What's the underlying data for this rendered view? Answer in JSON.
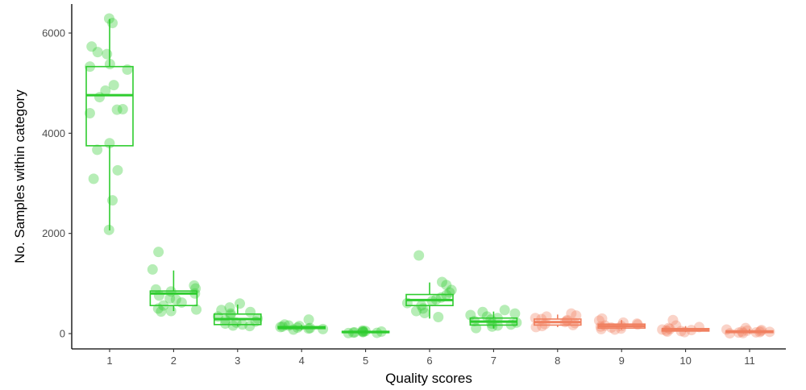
{
  "chart_data": {
    "type": "boxplot",
    "xlabel": "Quality scores",
    "ylabel": "No. Samples within category",
    "ylim": [
      -300,
      6600
    ],
    "y_ticks": [
      0,
      2000,
      4000,
      6000
    ],
    "categories": [
      "1",
      "2",
      "3",
      "4",
      "5",
      "6",
      "7",
      "8",
      "9",
      "10",
      "11"
    ],
    "grid": false,
    "colors": {
      "green": "#2ecc2e",
      "salmon": "#f08060",
      "axis": "#000000"
    },
    "boxes": [
      {
        "category": "1",
        "color": "green",
        "whisker_low": 2060,
        "q1": 3750,
        "median": 4760,
        "q3": 5330,
        "whisker_high": 6280,
        "points": [
          6290,
          6200,
          5730,
          5620,
          5580,
          5380,
          5330,
          5270,
          4960,
          4850,
          4720,
          4480,
          4470,
          4400,
          3800,
          3670,
          3260,
          3090,
          2660,
          2070
        ]
      },
      {
        "category": "2",
        "color": "green",
        "whisker_low": 450,
        "q1": 560,
        "median": 800,
        "q3": 850,
        "whisker_high": 1260,
        "points": [
          1630,
          1280,
          960,
          900,
          880,
          840,
          800,
          760,
          700,
          680,
          620,
          560,
          500,
          480,
          450,
          440
        ]
      },
      {
        "category": "3",
        "color": "green",
        "whisker_low": 150,
        "q1": 180,
        "median": 290,
        "q3": 390,
        "whisker_high": 580,
        "points": [
          600,
          520,
          470,
          430,
          400,
          370,
          340,
          300,
          270,
          240,
          220,
          200,
          180,
          160,
          150
        ]
      },
      {
        "category": "4",
        "color": "green",
        "whisker_low": 80,
        "q1": 100,
        "median": 120,
        "q3": 140,
        "whisker_high": 170,
        "points": [
          280,
          180,
          160,
          150,
          140,
          130,
          120,
          110,
          100,
          90,
          80
        ]
      },
      {
        "category": "5",
        "color": "green",
        "whisker_low": 10,
        "q1": 20,
        "median": 30,
        "q3": 45,
        "whisker_high": 60,
        "points": [
          60,
          50,
          45,
          40,
          35,
          30,
          25,
          20,
          15,
          10
        ]
      },
      {
        "category": "6",
        "color": "green",
        "whisker_low": 300,
        "q1": 560,
        "median": 670,
        "q3": 780,
        "whisker_high": 1020,
        "points": [
          1560,
          1030,
          970,
          870,
          820,
          770,
          720,
          680,
          650,
          610,
          560,
          500,
          450,
          410,
          330
        ]
      },
      {
        "category": "7",
        "color": "green",
        "whisker_low": 100,
        "q1": 170,
        "median": 240,
        "q3": 310,
        "whisker_high": 440,
        "points": [
          470,
          430,
          400,
          370,
          340,
          310,
          280,
          250,
          220,
          200,
          180,
          160,
          140,
          110
        ]
      },
      {
        "category": "8",
        "color": "salmon",
        "whisker_low": 130,
        "q1": 170,
        "median": 230,
        "q3": 290,
        "whisker_high": 380,
        "points": [
          400,
          360,
          340,
          310,
          290,
          270,
          250,
          230,
          210,
          190,
          170,
          150,
          130
        ]
      },
      {
        "category": "9",
        "color": "salmon",
        "whisker_low": 80,
        "q1": 110,
        "median": 150,
        "q3": 190,
        "whisker_high": 270,
        "points": [
          300,
          260,
          220,
          200,
          180,
          160,
          150,
          140,
          120,
          100,
          90,
          80
        ]
      },
      {
        "category": "10",
        "color": "salmon",
        "whisker_low": 30,
        "q1": 50,
        "median": 70,
        "q3": 100,
        "whisker_high": 150,
        "points": [
          270,
          160,
          130,
          110,
          90,
          80,
          70,
          60,
          50,
          40,
          30
        ]
      },
      {
        "category": "11",
        "color": "salmon",
        "whisker_low": 0,
        "q1": 20,
        "median": 35,
        "q3": 55,
        "whisker_high": 90,
        "points": [
          110,
          80,
          70,
          60,
          50,
          40,
          35,
          30,
          25,
          20,
          10,
          5
        ]
      }
    ]
  }
}
